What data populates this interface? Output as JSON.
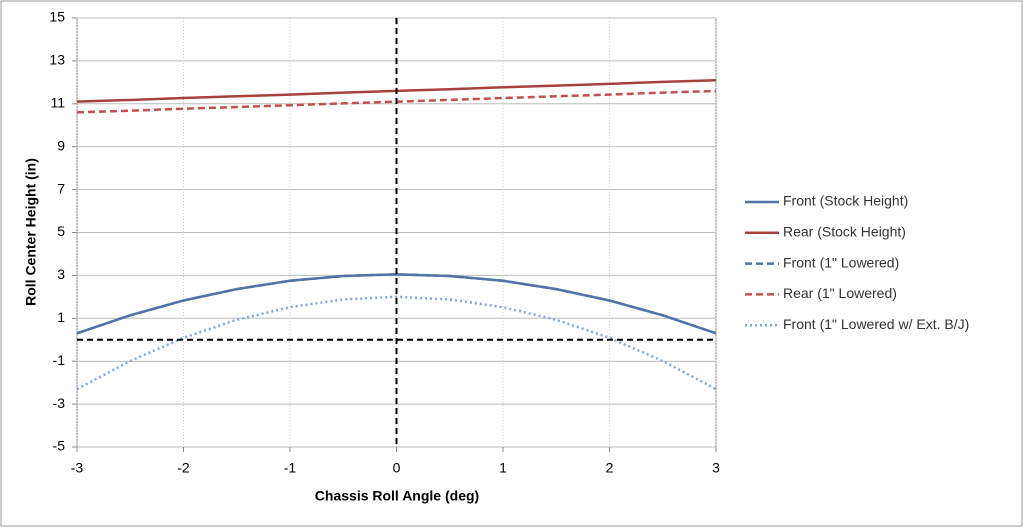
{
  "chart_data": {
    "type": "line",
    "x_label": "Chassis Roll Angle (deg)",
    "y_label": "Roll Center Height (in)",
    "x": [
      -3,
      -2.5,
      -2,
      -1.5,
      -1,
      -0.5,
      0,
      0.5,
      1,
      1.5,
      2,
      2.5,
      3
    ],
    "series": [
      {
        "name": "Front (Stock Height)",
        "color": "#4f74a6",
        "style": "solid",
        "values": [
          0.3,
          1.14,
          1.83,
          2.36,
          2.75,
          2.97,
          3.05,
          2.97,
          2.75,
          2.36,
          1.83,
          1.14,
          0.3
        ]
      },
      {
        "name": "Rear (Stock Height)",
        "color": "#a8403c",
        "style": "solid",
        "values": [
          11.1,
          11.18,
          11.27,
          11.35,
          11.43,
          11.52,
          11.6,
          11.68,
          11.77,
          11.85,
          11.93,
          12.02,
          12.1
        ]
      },
      {
        "name": "Front (1\" Lowered)",
        "color": "#4f74a6",
        "style": "dashed",
        "values": [
          0.3,
          1.14,
          1.83,
          2.36,
          2.75,
          2.97,
          3.05,
          2.97,
          2.75,
          2.36,
          1.83,
          1.14,
          0.3
        ]
      },
      {
        "name": "Rear (1\" Lowered)",
        "color": "#c0504d",
        "style": "dashed",
        "values": [
          10.6,
          10.68,
          10.77,
          10.85,
          10.93,
          11.02,
          11.1,
          11.18,
          11.27,
          11.35,
          11.43,
          11.52,
          11.6
        ]
      },
      {
        "name": "Front (1\" Lowered w/ Ext. B/J)",
        "color": "#7ea8d4",
        "style": "dotted",
        "values": [
          -2.3,
          -0.99,
          0.09,
          0.93,
          1.52,
          1.88,
          2.0,
          1.88,
          1.52,
          0.93,
          0.09,
          -0.99,
          -2.3
        ]
      }
    ],
    "reference_lines": [
      {
        "axis": "x",
        "value": 0
      },
      {
        "axis": "y",
        "value": 0
      }
    ],
    "xlim": [
      -3,
      3
    ],
    "xticks": [
      -3,
      -2,
      -1,
      0,
      1,
      2,
      3
    ],
    "ylim": [
      -5,
      15
    ],
    "yticks": [
      -5,
      -3,
      -1,
      1,
      3,
      5,
      7,
      9,
      11,
      13,
      15
    ],
    "grid": true,
    "legend": "right"
  }
}
